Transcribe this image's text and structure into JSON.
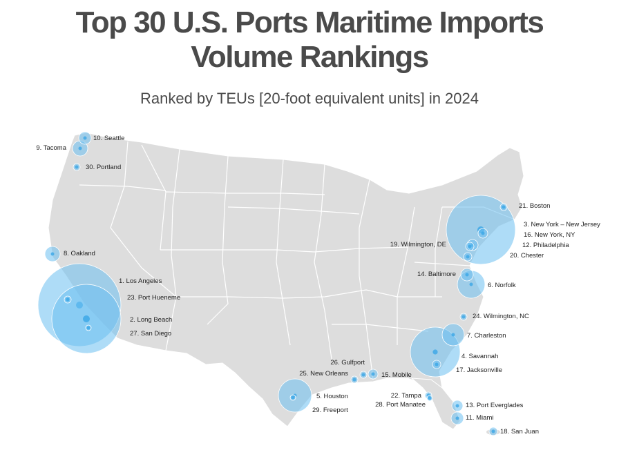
{
  "title_line1": "Top 30 U.S. Ports Maritime Imports",
  "title_line2": "Volume Rankings",
  "subtitle": "Ranked by TEUs [20-foot equivalent units] in 2024",
  "colors": {
    "bubble": "#6cbff0",
    "land": "#dddddd",
    "border": "#ffffff",
    "text": "#4a4a4a"
  },
  "ports": [
    {
      "rank": 1,
      "label": "1. Los Angeles",
      "size_rank_scale": 60
    },
    {
      "rank": 2,
      "label": "2. Long Beach",
      "size_rank_scale": 50
    },
    {
      "rank": 3,
      "label": "3. New York – New Jersey",
      "size_rank_scale": 50
    },
    {
      "rank": 4,
      "label": "4. Savannah",
      "size_rank_scale": 36
    },
    {
      "rank": 5,
      "label": "5. Houston",
      "size_rank_scale": 24
    },
    {
      "rank": 6,
      "label": "6. Norfolk",
      "size_rank_scale": 20
    },
    {
      "rank": 7,
      "label": "7. Charleston",
      "size_rank_scale": 16
    },
    {
      "rank": 8,
      "label": "8. Oakland",
      "size_rank_scale": 11
    },
    {
      "rank": 9,
      "label": "9. Tacoma",
      "size_rank_scale": 11
    },
    {
      "rank": 10,
      "label": "10. Seattle",
      "size_rank_scale": 9
    },
    {
      "rank": 11,
      "label": "11. Miami",
      "size_rank_scale": 9
    },
    {
      "rank": 12,
      "label": "12. Philadelphia",
      "size_rank_scale": 8
    },
    {
      "rank": 13,
      "label": "13. Port Everglades",
      "size_rank_scale": 8
    },
    {
      "rank": 14,
      "label": "14. Baltimore",
      "size_rank_scale": 9
    },
    {
      "rank": 15,
      "label": "15. Mobile",
      "size_rank_scale": 7
    },
    {
      "rank": 16,
      "label": "16. New York, NY",
      "size_rank_scale": 7
    },
    {
      "rank": 17,
      "label": "17. Jacksonville",
      "size_rank_scale": 6
    },
    {
      "rank": 18,
      "label": "18. San Juan",
      "size_rank_scale": 6
    },
    {
      "rank": 19,
      "label": "19. Wilmington, DE",
      "size_rank_scale": 6
    },
    {
      "rank": 20,
      "label": "20. Chester",
      "size_rank_scale": 6
    },
    {
      "rank": 21,
      "label": "21. Boston",
      "size_rank_scale": 5
    },
    {
      "rank": 22,
      "label": "22. Tampa",
      "size_rank_scale": 5
    },
    {
      "rank": 23,
      "label": "23. Port Hueneme",
      "size_rank_scale": 5
    },
    {
      "rank": 24,
      "label": "24. Wilmington, NC",
      "size_rank_scale": 5
    },
    {
      "rank": 25,
      "label": "25. New Orleans",
      "size_rank_scale": 5
    },
    {
      "rank": 26,
      "label": "26. Gulfport",
      "size_rank_scale": 5
    },
    {
      "rank": 27,
      "label": "27. San Diego",
      "size_rank_scale": 4
    },
    {
      "rank": 28,
      "label": "28. Port Manatee",
      "size_rank_scale": 4
    },
    {
      "rank": 29,
      "label": "29. Freeport",
      "size_rank_scale": 4
    },
    {
      "rank": 30,
      "label": "30. Portland",
      "size_rank_scale": 5
    }
  ]
}
